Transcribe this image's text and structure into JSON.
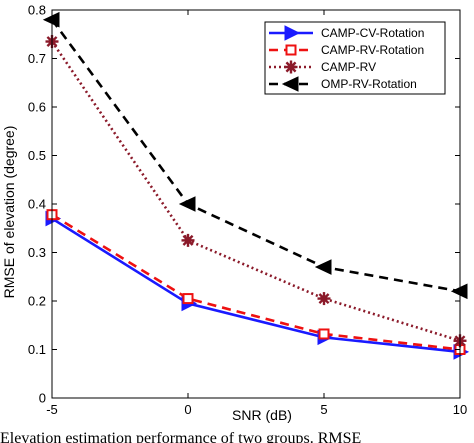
{
  "chart_data": {
    "type": "line",
    "x": [
      -5,
      0,
      5,
      10
    ],
    "xlabel": "SNR (dB)",
    "ylabel": "RMSE of elevation (degree)",
    "xlim": [
      -5,
      10
    ],
    "ylim": [
      0,
      0.8
    ],
    "xticks": [
      -5,
      0,
      5,
      10
    ],
    "yticks": [
      0,
      0.1,
      0.2,
      0.3,
      0.4,
      0.5,
      0.6,
      0.7,
      0.8
    ],
    "grid": false,
    "legend_position": "top-right",
    "series": [
      {
        "name": "CAMP-CV-Rotation",
        "values": [
          0.37,
          0.195,
          0.125,
          0.095
        ],
        "color": "#1a1aff",
        "dash": "solid",
        "marker": "triangle-right"
      },
      {
        "name": "CAMP-RV-Rotation",
        "values": [
          0.378,
          0.205,
          0.132,
          0.1
        ],
        "color": "#ee1111",
        "dash": "dashed",
        "marker": "square"
      },
      {
        "name": "CAMP-RV",
        "values": [
          0.735,
          0.325,
          0.205,
          0.118
        ],
        "color": "#8b1a2a",
        "dash": "dotted",
        "marker": "star"
      },
      {
        "name": "OMP-RV-Rotation",
        "values": [
          0.78,
          0.4,
          0.27,
          0.22
        ],
        "color": "#000000",
        "dash": "dashed",
        "marker": "triangle-left"
      }
    ]
  },
  "caption": {
    "text": "Elevation estimation performance of two groups. RMSE"
  }
}
